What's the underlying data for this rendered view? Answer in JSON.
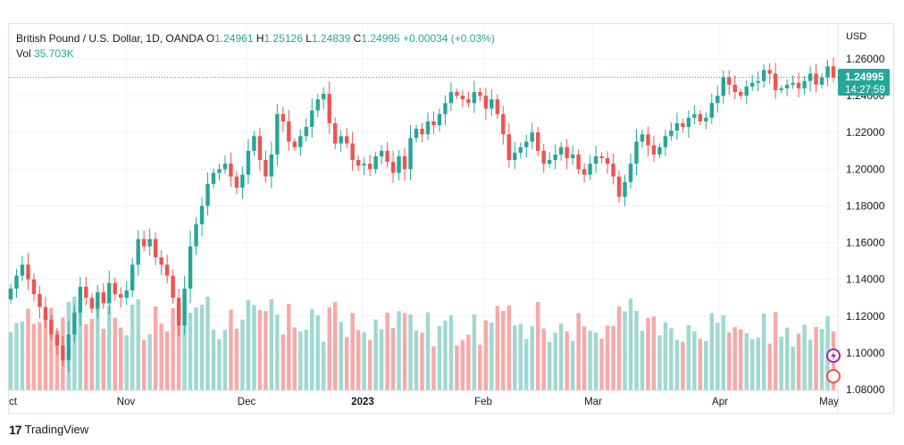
{
  "header": {
    "symbol": "British Pound / U.S. Dollar, 1D, OANDA",
    "o_label": "O",
    "o_value": "1.24961",
    "h_label": "H",
    "h_value": "1.25126",
    "l_label": "L",
    "l_value": "1.24839",
    "c_label": "C",
    "c_value": "1.24995",
    "change": "+0.00034 (+0.03%)",
    "vol_label": "Vol",
    "vol_value": "35.703K"
  },
  "footer": {
    "brand": "TradingView"
  },
  "colors": {
    "up": "#26a69a",
    "down": "#ef5350",
    "vol_up": "#9fd8d2",
    "vol_down": "#f7a9a7",
    "grid": "#f0f3fa"
  },
  "chart_data": {
    "type": "candlestick",
    "currency": "USD",
    "y_ticks": [
      "1.26000",
      "1.24000",
      "1.22000",
      "1.20000",
      "1.18000",
      "1.16000",
      "1.14000",
      "1.12000",
      "1.10000",
      "1.08000"
    ],
    "ylim": [
      1.075,
      1.272
    ],
    "x_labels": [
      "ct",
      "Nov",
      "Dec",
      "2023",
      "Feb",
      "Mar",
      "Apr",
      "May"
    ],
    "last_price": "1.24995",
    "countdown": "14:27:59",
    "series": [
      {
        "name": "",
        "close": [
          1.135,
          1.142,
          1.148,
          1.14,
          1.132,
          1.125,
          1.118,
          1.11,
          1.104,
          1.096,
          1.11,
          1.122,
          1.136,
          1.13,
          1.124,
          1.133,
          1.127,
          1.138,
          1.132,
          1.13,
          1.134,
          1.148,
          1.162,
          1.158,
          1.162,
          1.152,
          1.148,
          1.142,
          1.13,
          1.115,
          1.135,
          1.158,
          1.17,
          1.18,
          1.192,
          1.198,
          1.2,
          1.203,
          1.196,
          1.19,
          1.197,
          1.21,
          1.218,
          1.205,
          1.196,
          1.208,
          1.23,
          1.226,
          1.215,
          1.212,
          1.218,
          1.223,
          1.232,
          1.238,
          1.241,
          1.225,
          1.214,
          1.218,
          1.214,
          1.205,
          1.202,
          1.203,
          1.2,
          1.207,
          1.21,
          1.204,
          1.198,
          1.207,
          1.2,
          1.217,
          1.222,
          1.219,
          1.226,
          1.224,
          1.23,
          1.236,
          1.242,
          1.24,
          1.238,
          1.236,
          1.242,
          1.24,
          1.233,
          1.238,
          1.23,
          1.219,
          1.205,
          1.209,
          1.212,
          1.215,
          1.22,
          1.21,
          1.203,
          1.205,
          1.208,
          1.212,
          1.206,
          1.208,
          1.2,
          1.197,
          1.203,
          1.207,
          1.206,
          1.203,
          1.196,
          1.185,
          1.193,
          1.203,
          1.215,
          1.219,
          1.213,
          1.208,
          1.212,
          1.218,
          1.221,
          1.225,
          1.223,
          1.228,
          1.23,
          1.226,
          1.228,
          1.236,
          1.24,
          1.25,
          1.246,
          1.242,
          1.24,
          1.245,
          1.247,
          1.248,
          1.254,
          1.252,
          1.243,
          1.244,
          1.246,
          1.247,
          1.244,
          1.248,
          1.252,
          1.246,
          1.25,
          1.256,
          1.25
        ]
      }
    ]
  }
}
